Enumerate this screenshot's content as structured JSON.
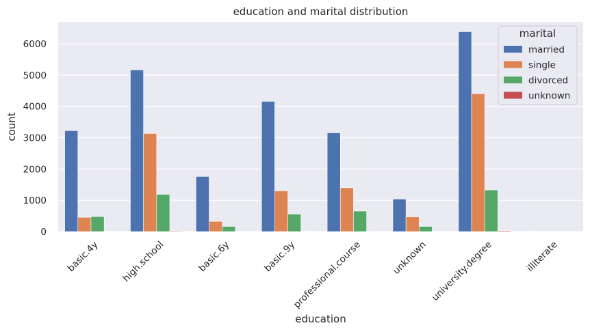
{
  "chart_data": {
    "type": "bar",
    "title": "education and marital distribution",
    "xlabel": "education",
    "ylabel": "count",
    "categories": [
      "basic.4y",
      "high.school",
      "basic.6y",
      "basic.9y",
      "professional.course",
      "unknown",
      "university.degree",
      "illiterate"
    ],
    "series": [
      {
        "name": "married",
        "color": "#4c72b0",
        "values": [
          3225,
          5165,
          1760,
          4160,
          3155,
          1040,
          6385,
          12
        ]
      },
      {
        "name": "single",
        "color": "#dd8452",
        "values": [
          455,
          3135,
          325,
          1300,
          1400,
          470,
          4405,
          3
        ]
      },
      {
        "name": "divorced",
        "color": "#55a868",
        "values": [
          480,
          1190,
          165,
          560,
          655,
          165,
          1330,
          3
        ]
      },
      {
        "name": "unknown",
        "color": "#c44e52",
        "values": [
          10,
          20,
          5,
          10,
          15,
          10,
          25,
          0
        ]
      }
    ],
    "ylim": [
      0,
      6700
    ],
    "yticks": [
      0,
      1000,
      2000,
      3000,
      4000,
      5000,
      6000
    ],
    "legend": {
      "title": "marital",
      "placement": "top-right"
    },
    "grid": true,
    "background": "#eaeaf2"
  }
}
